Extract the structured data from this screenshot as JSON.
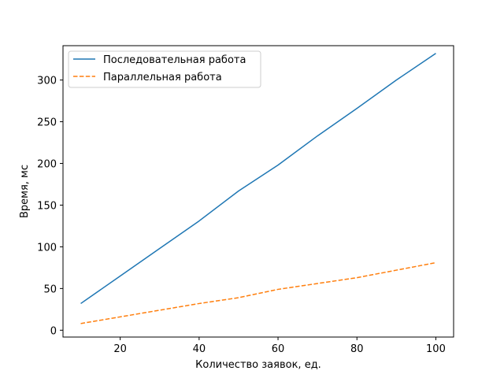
{
  "chart_data": {
    "type": "line",
    "title": "",
    "xlabel": "Количество заявок, ед.",
    "ylabel": "Время, мс",
    "xlim": [
      5.5,
      104.5
    ],
    "ylim": [
      -8.2,
      341.2
    ],
    "xticks": [
      20,
      40,
      60,
      80,
      100
    ],
    "yticks": [
      0,
      50,
      100,
      150,
      200,
      250,
      300
    ],
    "grid": false,
    "legend_position": "top-left",
    "series": [
      {
        "name": "Последовательная работа",
        "color": "#1f77b4",
        "linestyle": "solid",
        "x": [
          10,
          20,
          30,
          40,
          50,
          60,
          70,
          80,
          90,
          100
        ],
        "y": [
          32,
          65,
          98,
          131,
          167,
          198,
          233,
          266,
          300,
          332
        ]
      },
      {
        "name": "Параллельная работа",
        "color": "#ff7f0e",
        "linestyle": "dashed",
        "x": [
          10,
          20,
          30,
          40,
          50,
          60,
          70,
          80,
          90,
          100
        ],
        "y": [
          8,
          16,
          24,
          32,
          39,
          49,
          56,
          63,
          72,
          81
        ]
      }
    ]
  }
}
